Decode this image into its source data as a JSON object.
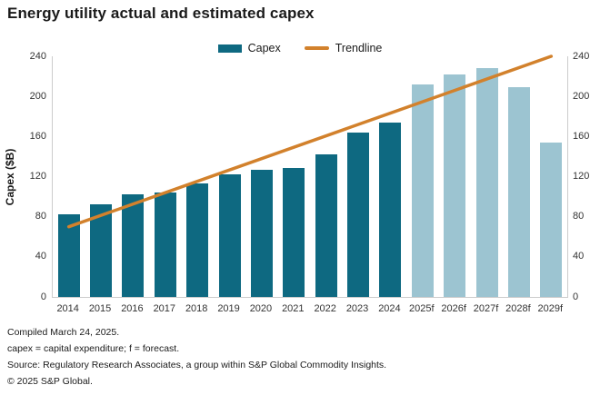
{
  "header": {
    "title": "Energy utility actual and estimated capex"
  },
  "legend": {
    "capex_label": "Capex",
    "trendline_label": "Trendline"
  },
  "colors": {
    "actual_bar": "#0E6981",
    "forecast_bar": "#9CC4D1",
    "trendline": "#D2812C",
    "axis_line": "#CCCCCC",
    "tick_text": "#333333"
  },
  "chart_data": {
    "type": "bar",
    "title": "Energy utility actual and estimated capex",
    "xlabel": "",
    "ylabel": "Capex ($B)",
    "ylim": [
      0,
      240
    ],
    "yticks": [
      0,
      40,
      80,
      120,
      160,
      200,
      240
    ],
    "dual_axis": true,
    "grid": false,
    "legend_position": "top",
    "categories": [
      "2014",
      "2015",
      "2016",
      "2017",
      "2018",
      "2019",
      "2020",
      "2021",
      "2022",
      "2023",
      "2024",
      "2025f",
      "2026f",
      "2027f",
      "2028f",
      "2029f"
    ],
    "forecast_start_index": 11,
    "series": [
      {
        "name": "Capex",
        "type": "bar",
        "values": [
          82,
          92,
          102,
          104,
          113,
          122,
          127,
          129,
          142,
          164,
          174,
          212,
          222,
          228,
          209,
          154
        ]
      },
      {
        "name": "Trendline",
        "type": "line",
        "x": [
          "2014",
          "2029f"
        ],
        "values": [
          70,
          240
        ]
      }
    ]
  },
  "footer": {
    "lines": [
      "Compiled March 24, 2025.",
      "capex = capital expenditure; f = forecast.",
      "Source: Regulatory Research Associates, a group within S&P Global Commodity Insights.",
      "© 2025 S&P Global."
    ]
  }
}
